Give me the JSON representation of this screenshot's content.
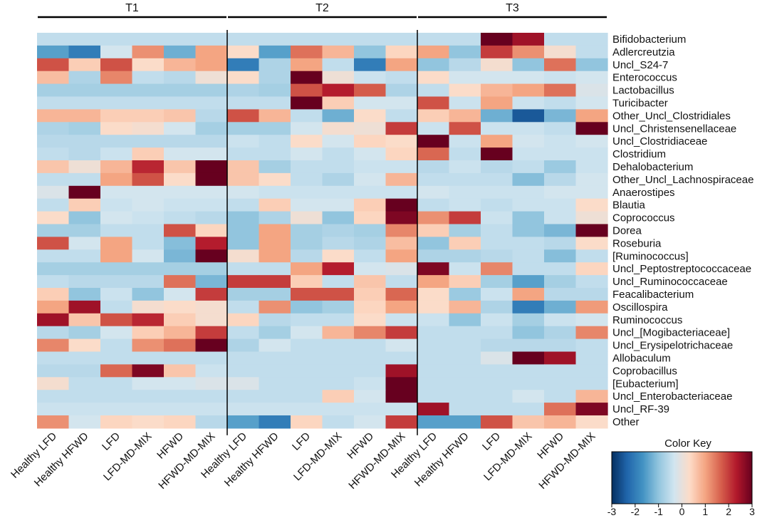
{
  "chart_data": {
    "type": "heatmap",
    "groups": [
      "T1",
      "T2",
      "T3"
    ],
    "columns": [
      "Healthy LFD",
      "Healthy HFWD",
      "LFD",
      "LFD-MD-MIX",
      "HFWD",
      "HFWD-MD-MIX"
    ],
    "rows": [
      "Bifidobacterium",
      "Adlercreutzia",
      "Uncl_S24-7",
      "Enterococcus",
      "Lactobacillus",
      "Turicibacter",
      "Other_Uncl_Clostridiales",
      "Uncl_Christensenellaceae",
      "Uncl_Clostridiaceae",
      "Clostridium",
      "Dehalobacterium",
      "Other_Uncl_Lachnospiraceae",
      "Anaerostipes",
      "Blautia",
      "Coprococcus",
      "Dorea",
      "Roseburia",
      "[Ruminococcus]",
      "Uncl_Peptostreptococcaceae",
      "Uncl_Ruminococcaceae",
      "Feacalibacterium",
      "Oscillospira",
      "Ruminococcus",
      "Uncl_[Mogibacteriaceae]",
      "Uncl_Erysipelotrichaceae",
      "Allobaculum",
      "Coprobacillus",
      "[Eubacterium]",
      "Uncl_Enterobacteriaceae",
      "Uncl_RF-39",
      "Other"
    ],
    "values": [
      [
        -0.5,
        -0.5,
        -0.5,
        -0.5,
        -0.5,
        -0.5,
        -0.5,
        -0.5,
        -0.5,
        -0.5,
        -0.5,
        -0.5,
        -0.5,
        -0.5,
        3.0,
        2.5,
        -0.5,
        -0.5
      ],
      [
        -1.5,
        -2.0,
        -0.3,
        1.2,
        -1.3,
        1.0,
        0.3,
        -1.5,
        1.5,
        0.8,
        -1.0,
        0.4,
        1.0,
        -1.0,
        2.0,
        1.2,
        0.2,
        -0.5
      ],
      [
        1.8,
        0.5,
        1.8,
        0.3,
        0.8,
        1.0,
        -2.0,
        -0.7,
        1.0,
        -0.5,
        -2.0,
        1.0,
        -1.0,
        -0.6,
        0.2,
        -1.0,
        1.5,
        -1.0
      ],
      [
        0.7,
        -0.7,
        1.3,
        -0.5,
        -0.6,
        0.1,
        0.3,
        -0.7,
        3.0,
        0.1,
        -0.4,
        -0.5,
        0.3,
        -0.3,
        -0.3,
        -0.3,
        -0.4,
        -0.3
      ],
      [
        -0.8,
        -0.8,
        -0.8,
        -0.8,
        -0.8,
        -0.8,
        -0.7,
        -0.8,
        1.8,
        2.3,
        1.7,
        -0.7,
        -0.5,
        0.3,
        0.8,
        1.0,
        1.5,
        -0.2
      ],
      [
        -0.5,
        -0.5,
        -0.5,
        -0.5,
        -0.5,
        -0.5,
        -0.5,
        -0.5,
        3.0,
        0.5,
        -0.3,
        -0.3,
        1.8,
        -0.4,
        1.0,
        -0.4,
        -0.5,
        -0.3
      ],
      [
        0.8,
        0.8,
        0.5,
        0.5,
        0.6,
        -0.6,
        1.8,
        0.8,
        -0.5,
        -1.3,
        0.3,
        -0.5,
        0.5,
        0.8,
        -1.3,
        -2.5,
        -1.2,
        1.0
      ],
      [
        -0.7,
        -0.8,
        0.3,
        0.2,
        -0.3,
        -0.8,
        -0.8,
        -0.8,
        -0.3,
        0.2,
        0.1,
        2.0,
        -0.4,
        1.8,
        -0.4,
        -0.4,
        -0.5,
        3.0
      ],
      [
        -0.6,
        -0.6,
        -0.6,
        -0.6,
        -0.6,
        -0.6,
        -0.4,
        -0.5,
        0.3,
        -0.3,
        0.4,
        0.3,
        3.0,
        -0.4,
        1.0,
        -0.3,
        -0.4,
        -0.3
      ],
      [
        -0.5,
        -0.6,
        -0.4,
        0.5,
        -0.3,
        -0.3,
        -0.5,
        -0.5,
        -0.3,
        -0.5,
        -0.3,
        0.4,
        1.6,
        -0.5,
        3.0,
        -0.4,
        -0.4,
        -0.4
      ],
      [
        0.6,
        0.1,
        0.8,
        2.2,
        0.6,
        3.0,
        0.6,
        -0.8,
        -0.5,
        -0.5,
        -0.4,
        -0.4,
        -0.6,
        -0.4,
        -0.6,
        -0.5,
        -0.9,
        -0.4
      ],
      [
        -0.5,
        -0.5,
        1.0,
        1.8,
        0.3,
        3.0,
        0.6,
        0.3,
        -0.5,
        -0.7,
        -0.3,
        0.8,
        -0.5,
        -0.5,
        -0.5,
        -1.1,
        -0.6,
        -0.3
      ],
      [
        -0.2,
        3.0,
        -0.3,
        -0.3,
        -0.3,
        -0.3,
        -0.3,
        -0.4,
        -0.4,
        -0.4,
        -0.4,
        -0.4,
        -0.3,
        -0.4,
        -0.4,
        -0.4,
        -0.3,
        -0.3
      ],
      [
        -0.5,
        0.5,
        -0.4,
        -0.3,
        -0.4,
        -0.4,
        -0.5,
        0.5,
        -0.3,
        -0.3,
        0.5,
        3.0,
        -0.5,
        -0.4,
        -0.5,
        -0.4,
        -0.4,
        0.3
      ],
      [
        0.3,
        -1.0,
        -0.3,
        -0.4,
        -0.5,
        -0.6,
        -1.0,
        -0.7,
        0.1,
        -1.0,
        0.4,
        2.8,
        1.2,
        2.0,
        -0.4,
        -1.0,
        -0.4,
        0.1
      ],
      [
        -0.8,
        -0.8,
        -0.5,
        -0.5,
        1.8,
        0.4,
        -1.0,
        1.0,
        -0.8,
        -0.7,
        -0.8,
        1.3,
        0.5,
        -0.8,
        -0.5,
        -1.0,
        -1.2,
        3.0
      ],
      [
        1.8,
        -0.3,
        1.0,
        -0.5,
        -1.1,
        2.3,
        -1.0,
        1.0,
        -0.8,
        -0.6,
        -0.7,
        0.7,
        -1.0,
        0.5,
        -0.5,
        -0.5,
        -0.6,
        0.3
      ],
      [
        -0.5,
        -0.5,
        1.0,
        -0.3,
        -1.2,
        3.0,
        0.2,
        1.0,
        -0.6,
        0.3,
        -0.5,
        1.0,
        -0.7,
        -0.7,
        -0.6,
        -0.5,
        -1.1,
        -0.5
      ],
      [
        -0.8,
        -0.8,
        -0.8,
        -0.8,
        -0.8,
        -0.8,
        -0.5,
        -0.5,
        1.0,
        2.3,
        -0.3,
        -0.2,
        2.8,
        -0.4,
        1.3,
        -0.5,
        -0.5,
        0.4
      ],
      [
        -0.5,
        -0.6,
        -0.6,
        -0.6,
        1.5,
        -1.2,
        2.0,
        2.0,
        0.5,
        -0.5,
        0.6,
        -0.5,
        1.0,
        0.5,
        -0.8,
        -1.5,
        -0.8,
        -0.5
      ],
      [
        0.5,
        -1.0,
        -0.4,
        -1.0,
        -0.3,
        2.0,
        -0.8,
        -0.8,
        1.8,
        1.8,
        0.5,
        1.6,
        0.3,
        -0.9,
        -0.4,
        1.0,
        -0.6,
        -0.6
      ],
      [
        1.0,
        2.5,
        -0.5,
        0.2,
        0.3,
        0.2,
        -0.5,
        1.2,
        -1.0,
        -0.8,
        0.4,
        1.0,
        0.3,
        0.8,
        -0.7,
        -2.0,
        -1.3,
        1.1
      ],
      [
        2.5,
        0.6,
        1.8,
        2.2,
        0.5,
        0.2,
        0.4,
        -0.6,
        -0.5,
        -0.5,
        0.3,
        -0.4,
        -0.4,
        -1.0,
        -0.4,
        -0.8,
        -0.4,
        -0.3
      ],
      [
        -0.6,
        -0.8,
        -0.3,
        0.5,
        0.8,
        2.0,
        -0.5,
        -0.8,
        -0.3,
        0.8,
        1.3,
        2.0,
        -0.5,
        -0.5,
        -0.5,
        -1.0,
        -0.7,
        1.3
      ],
      [
        1.3,
        0.3,
        -0.5,
        1.2,
        1.5,
        3.0,
        -0.7,
        -0.3,
        -0.5,
        -0.5,
        -0.5,
        -0.3,
        -0.5,
        -0.5,
        -0.6,
        -0.6,
        -0.6,
        -0.5
      ],
      [
        -0.5,
        -0.5,
        -0.5,
        -0.5,
        -0.5,
        -0.5,
        -0.5,
        -0.5,
        -0.5,
        -0.5,
        -0.5,
        -0.5,
        -0.5,
        -0.5,
        -0.2,
        3.0,
        2.5,
        -0.5
      ],
      [
        -0.6,
        -0.6,
        1.6,
        2.8,
        0.6,
        -0.4,
        -0.5,
        -0.5,
        -0.5,
        -0.5,
        -0.5,
        2.5,
        -0.5,
        -0.5,
        -0.5,
        -0.5,
        -0.5,
        -0.5
      ],
      [
        0.2,
        -0.5,
        -0.5,
        -0.3,
        -0.3,
        -0.2,
        -0.2,
        -0.5,
        -0.5,
        -0.5,
        -0.4,
        3.0,
        -0.5,
        -0.5,
        -0.5,
        -0.5,
        -0.5,
        -0.5
      ],
      [
        -0.5,
        -0.5,
        -0.5,
        -0.5,
        -0.5,
        -0.5,
        -0.5,
        -0.5,
        -0.5,
        0.5,
        -0.3,
        3.0,
        -0.5,
        -0.5,
        -0.5,
        -0.3,
        -0.5,
        0.8
      ],
      [
        -0.4,
        -0.4,
        -0.4,
        -0.4,
        -0.4,
        -0.4,
        -0.4,
        -0.4,
        -0.4,
        -0.4,
        -0.4,
        -0.4,
        2.5,
        -0.5,
        -0.5,
        -0.5,
        1.5,
        2.8
      ],
      [
        1.2,
        -0.3,
        0.4,
        0.3,
        0.4,
        -0.6,
        -1.5,
        -2.0,
        0.4,
        -0.5,
        -0.3,
        2.0,
        -1.5,
        -1.5,
        1.8,
        0.6,
        0.8,
        0.3
      ]
    ],
    "scale": {
      "min": -3,
      "max": 3,
      "colors": [
        "#053061",
        "#2166ac",
        "#4393c3",
        "#92c5de",
        "#d1e5f0",
        "#fddbc7",
        "#f4a582",
        "#d6604d",
        "#b2182b",
        "#67001f"
      ]
    },
    "legend": {
      "title": "Color Key",
      "ticks": [
        -3,
        -2,
        -1,
        0,
        1,
        2,
        3
      ]
    }
  }
}
